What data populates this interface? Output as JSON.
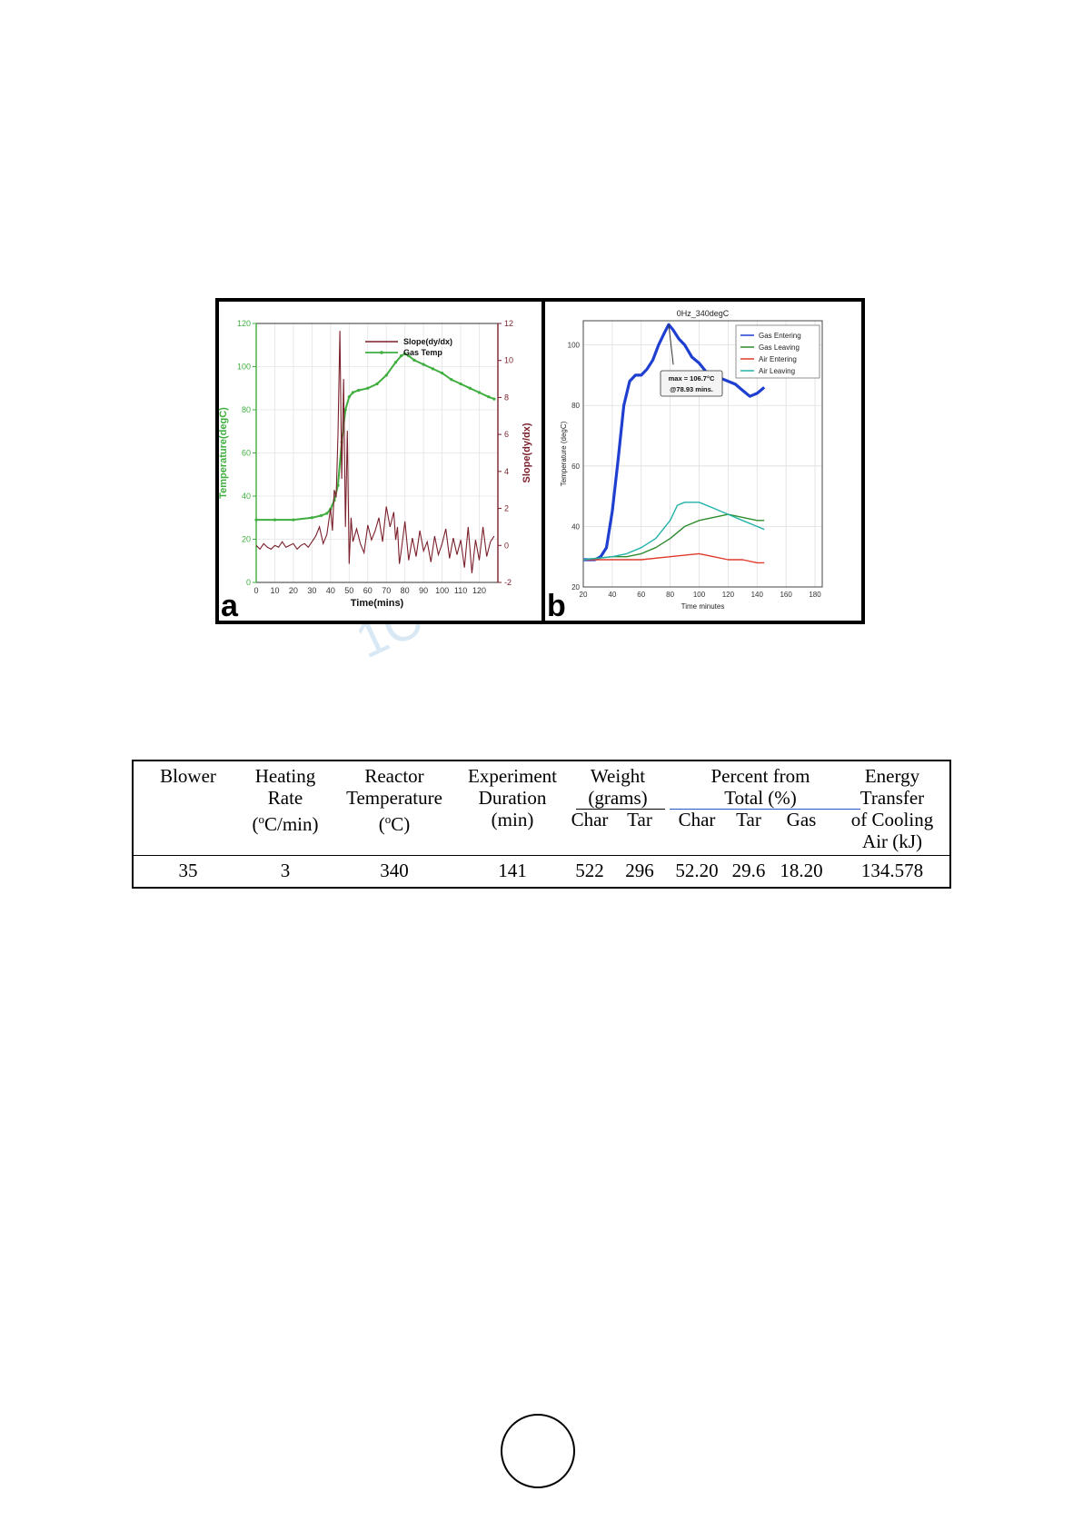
{
  "chart_data": [
    {
      "type": "line",
      "panel_label": "a",
      "xlabel": "Time(mins)",
      "ylabel": "Temperature(degC)",
      "y2label": "Slope(dy/dx)",
      "xlim": [
        0,
        130
      ],
      "ylim": [
        0,
        120
      ],
      "y2lim": [
        -2,
        12
      ],
      "x_ticks": [
        "0",
        "10",
        "20",
        "30",
        "40",
        "50",
        "60",
        "70",
        "80",
        "90",
        "100",
        "110",
        "120"
      ],
      "y_ticks": [
        "0",
        "20",
        "40",
        "60",
        "80",
        "100",
        "120"
      ],
      "y2_ticks": [
        "-2",
        "0",
        "2",
        "4",
        "6",
        "8",
        "10",
        "12"
      ],
      "grid": true,
      "legend_position": "top-right",
      "colors": {
        "slope": "#7a1f2b",
        "gas": "#3fae3f"
      },
      "series": [
        {
          "name": "Slope(dy/dx)",
          "axis": "right",
          "x": [
            0,
            2,
            4,
            6,
            8,
            10,
            12,
            14,
            16,
            18,
            20,
            22,
            24,
            26,
            28,
            30,
            32,
            34,
            36,
            38,
            40,
            41,
            42,
            43,
            44,
            45,
            46,
            47,
            48,
            49,
            50,
            51,
            52,
            54,
            56,
            58,
            60,
            62,
            64,
            66,
            68,
            70,
            72,
            74,
            75,
            76,
            77,
            78,
            80,
            82,
            84,
            86,
            88,
            90,
            92,
            94,
            96,
            98,
            100,
            102,
            104,
            106,
            108,
            110,
            112,
            114,
            116,
            118,
            120,
            122,
            124,
            126,
            128
          ],
          "y": [
            0,
            -0.2,
            0.1,
            -0.1,
            -0.2,
            0,
            -0.1,
            0.2,
            -0.1,
            0,
            0.1,
            -0.2,
            0,
            0.1,
            -0.1,
            0.2,
            0.5,
            1.0,
            0.1,
            0.6,
            2.0,
            0.8,
            3.0,
            2.6,
            6.0,
            11.6,
            3.6,
            9.0,
            1.0,
            6.2,
            -1.0,
            1.5,
            0.2,
            0.9,
            0.1,
            -0.4,
            1.1,
            0.3,
            0.8,
            1.5,
            0.2,
            2.1,
            1.0,
            1.8,
            0.3,
            1.0,
            -1.0,
            -0.3,
            1.3,
            -0.8,
            0.4,
            -0.6,
            0.8,
            -0.3,
            0.2,
            -0.9,
            0.5,
            -0.5,
            0.1,
            0.9,
            -0.7,
            0.4,
            -0.5,
            0.3,
            -1.2,
            1.0,
            -1.5,
            0.3,
            -0.8,
            1.0,
            -0.6,
            0.2,
            0.5
          ]
        },
        {
          "name": "Gas Temp",
          "axis": "left",
          "x": [
            0,
            10,
            20,
            30,
            35,
            38,
            40,
            42,
            44,
            46,
            48,
            50,
            52,
            55,
            60,
            65,
            70,
            75,
            78,
            80,
            82,
            85,
            90,
            95,
            100,
            105,
            110,
            115,
            120,
            125,
            128
          ],
          "y": [
            29,
            29,
            29,
            30,
            31,
            32,
            34,
            38,
            45,
            65,
            80,
            86,
            88,
            89,
            90,
            92,
            96,
            102,
            105,
            106,
            105,
            103,
            101,
            99,
            97,
            94,
            92,
            90,
            88,
            86,
            85
          ]
        }
      ]
    },
    {
      "type": "line",
      "panel_label": "b",
      "title": "0Hz_340degC",
      "xlabel": "Time minutes",
      "ylabel": "Temperature (degC)",
      "xlim": [
        20,
        185
      ],
      "ylim": [
        20,
        108
      ],
      "x_ticks": [
        "20",
        "40",
        "60",
        "80",
        "100",
        "120",
        "140",
        "160",
        "180"
      ],
      "y_ticks": [
        "20",
        "40",
        "60",
        "80",
        "100"
      ],
      "grid": true,
      "legend_position": "top-right",
      "annotation": {
        "line1": "max = 106.7°C",
        "line2": "@78.93 mins."
      },
      "series": [
        {
          "name": "Gas Entering",
          "color": "#1f3fd0",
          "x": [
            20,
            28,
            32,
            36,
            40,
            44,
            48,
            52,
            56,
            60,
            64,
            68,
            72,
            76,
            79,
            82,
            86,
            90,
            95,
            100,
            105,
            110,
            115,
            120,
            125,
            130,
            135,
            140,
            145
          ],
          "y": [
            29,
            29,
            30,
            33,
            45,
            62,
            80,
            88,
            90,
            90,
            92,
            95,
            100,
            104,
            106.7,
            105,
            102,
            100,
            96,
            94,
            91,
            90,
            89,
            88,
            87,
            85,
            83,
            84,
            86
          ]
        },
        {
          "name": "Gas Leaving",
          "color": "#2e8b2e",
          "x": [
            20,
            40,
            50,
            60,
            70,
            80,
            90,
            100,
            110,
            120,
            130,
            140,
            145
          ],
          "y": [
            29,
            30,
            30,
            31,
            33,
            36,
            40,
            42,
            43,
            44,
            43,
            42,
            42
          ]
        },
        {
          "name": "Air Entering",
          "color": "#e03a2a",
          "x": [
            20,
            40,
            60,
            80,
            100,
            110,
            120,
            130,
            140,
            145
          ],
          "y": [
            29,
            29,
            29,
            30,
            31,
            30,
            29,
            29,
            28,
            28
          ]
        },
        {
          "name": "Air Leaving",
          "color": "#22b2a8",
          "x": [
            20,
            40,
            50,
            60,
            70,
            80,
            85,
            90,
            100,
            110,
            120,
            130,
            140,
            145
          ],
          "y": [
            29,
            30,
            31,
            33,
            36,
            42,
            47,
            48,
            48,
            46,
            44,
            42,
            40,
            39
          ]
        }
      ]
    }
  ],
  "table": {
    "headers": {
      "blower": "Blower",
      "heating_line1": "Heating",
      "heating_line2": "Rate",
      "heating_line3": "(oC/min)",
      "reactor_line1": "Reactor",
      "reactor_line2": "Temperature",
      "reactor_line3": "(oC)",
      "duration_line1": "Experiment",
      "duration_line2": "Duration",
      "duration_line3": "(min)",
      "weight_line1": "Weight",
      "weight_line2": "(grams)",
      "percent_line1": "Percent from",
      "percent_line2": "Total (%)",
      "energy_line1": "Energy",
      "energy_line2": "Transfer",
      "energy_line3": "of Cooling",
      "energy_line4": "Air (kJ)",
      "sub_char1": "Char",
      "sub_tar1": "Tar",
      "sub_char2": "Char",
      "sub_tar2": "Tar",
      "sub_gas": "Gas"
    },
    "row": [
      "35",
      "3",
      "340",
      "141",
      "522",
      "296",
      "52.20",
      "29.6",
      "18.20",
      "134.578"
    ]
  }
}
